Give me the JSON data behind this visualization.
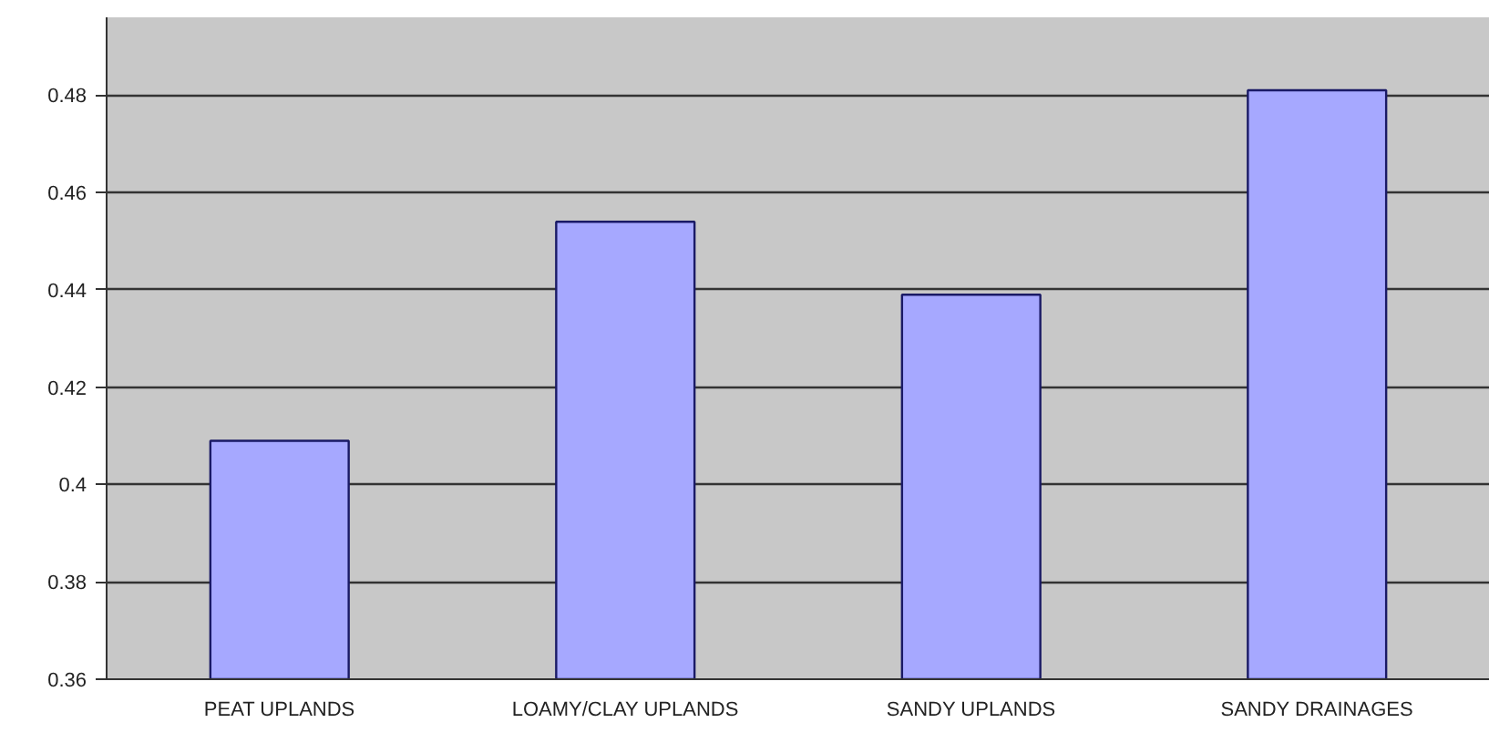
{
  "chart_data": {
    "type": "bar",
    "categories": [
      "PEAT UPLANDS",
      "LOAMY/CLAY UPLANDS",
      "SANDY UPLANDS",
      "SANDY DRAINAGES"
    ],
    "values": [
      0.409,
      0.454,
      0.439,
      0.481
    ],
    "color": "#a6a8ff",
    "ylim": [
      0.36,
      0.496
    ],
    "yticks": [
      0.36,
      0.38,
      {
        "value": 0.4,
        "label": "0.4"
      },
      0.42,
      0.44,
      0.46,
      0.48
    ],
    "grid": "y"
  }
}
